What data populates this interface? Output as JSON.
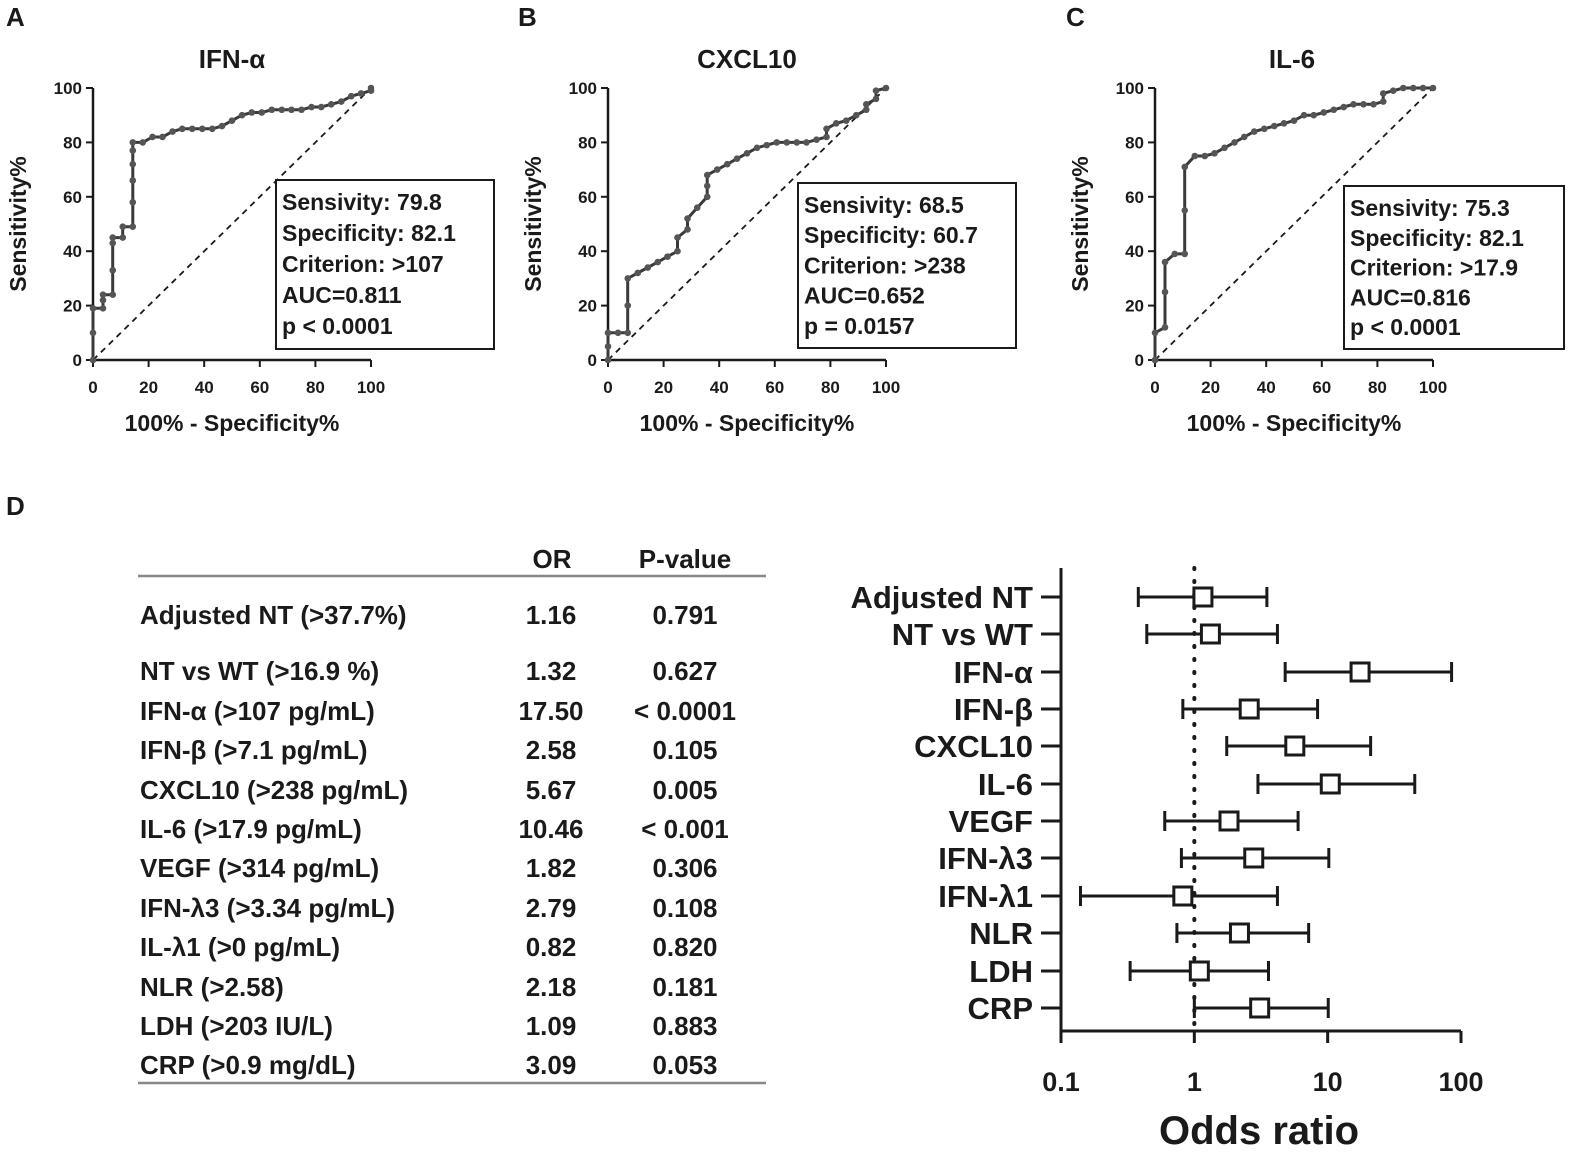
{
  "panel_labels": [
    "A",
    "B",
    "C",
    "D"
  ],
  "chart_data": [
    {
      "type": "line",
      "title": "IFN-α",
      "xlabel": "100% - Specificity%",
      "ylabel": "Sensitivity%",
      "xlim": [
        0,
        100
      ],
      "ylim": [
        0,
        100
      ],
      "x_ticks": [
        0,
        20,
        40,
        60,
        80,
        100
      ],
      "y_ticks": [
        0,
        20,
        40,
        60,
        80,
        100
      ],
      "reference_line": "diagonal",
      "stats": [
        "Sensivity: 79.8",
        "Specificity: 82.1",
        "Criterion: >107",
        "AUC=0.811",
        "p < 0.0001"
      ],
      "series": [
        {
          "name": "ROC",
          "x": [
            0,
            0,
            0,
            3.6,
            3.6,
            3.6,
            7.1,
            7.1,
            7.1,
            7.1,
            10.7,
            10.7,
            14.3,
            14.3,
            14.3,
            14.3,
            14.3,
            14.3,
            17.9,
            21.4,
            25,
            28.6,
            32.1,
            35.7,
            39.3,
            42.9,
            46.4,
            50,
            53.6,
            57.1,
            60.7,
            64.3,
            67.9,
            71.4,
            75,
            78.6,
            82.1,
            85.7,
            89.3,
            92.9,
            96.4,
            100,
            100
          ],
          "y": [
            0,
            10,
            19,
            19,
            22,
            24,
            24,
            33,
            43,
            45,
            45,
            49,
            49,
            58,
            66,
            72,
            77,
            80,
            80,
            82,
            82,
            84,
            85,
            85,
            85,
            85,
            86,
            88,
            90,
            91,
            91,
            92,
            92,
            92,
            92,
            93,
            93,
            94,
            95,
            97,
            98,
            99,
            100
          ]
        }
      ]
    },
    {
      "type": "line",
      "title": "CXCL10",
      "xlabel": "100% - Specificity%",
      "ylabel": "Sensitivity%",
      "xlim": [
        0,
        100
      ],
      "ylim": [
        0,
        100
      ],
      "x_ticks": [
        0,
        20,
        40,
        60,
        80,
        100
      ],
      "y_ticks": [
        0,
        20,
        40,
        60,
        80,
        100
      ],
      "reference_line": "diagonal",
      "stats": [
        "Sensivity: 68.5",
        "Specificity: 60.7",
        "Criterion: >238",
        "AUC=0.652",
        "p = 0.0157"
      ],
      "series": [
        {
          "name": "ROC",
          "x": [
            0,
            0,
            0,
            3.6,
            7.1,
            7.1,
            7.1,
            10.7,
            14.3,
            17.9,
            21.4,
            25,
            25,
            28.6,
            28.6,
            32.1,
            35.7,
            35.7,
            35.7,
            39.3,
            42.9,
            46.4,
            50,
            53.6,
            57.1,
            60.7,
            64.3,
            67.9,
            71.4,
            75,
            78.6,
            78.6,
            82.1,
            85.7,
            89.3,
            92.9,
            92.9,
            96.4,
            96.4,
            100
          ],
          "y": [
            0,
            5,
            10,
            10,
            10,
            20,
            30,
            32,
            34,
            36,
            38,
            40,
            45,
            48,
            52,
            56,
            60,
            64,
            68,
            70,
            72,
            74,
            76,
            78,
            79,
            80,
            80,
            80,
            80,
            81,
            82,
            85,
            87,
            88,
            90,
            92,
            94,
            96,
            99,
            100
          ]
        }
      ]
    },
    {
      "type": "line",
      "title": "IL-6",
      "xlabel": "100% - Specificity%",
      "ylabel": "Sensitivity%",
      "xlim": [
        0,
        100
      ],
      "ylim": [
        0,
        100
      ],
      "x_ticks": [
        0,
        20,
        40,
        60,
        80,
        100
      ],
      "y_ticks": [
        0,
        20,
        40,
        60,
        80,
        100
      ],
      "reference_line": "diagonal",
      "stats": [
        "Sensivity: 75.3",
        "Specificity: 82.1",
        "Criterion: >17.9",
        "AUC=0.816",
        "p < 0.0001"
      ],
      "series": [
        {
          "name": "ROC",
          "x": [
            0,
            0,
            3.6,
            3.6,
            3.6,
            7.1,
            10.7,
            10.7,
            10.7,
            14.3,
            17.9,
            21.4,
            25,
            28.6,
            32.1,
            35.7,
            39.3,
            42.9,
            46.4,
            50,
            53.6,
            57.1,
            60.7,
            64.3,
            67.9,
            71.4,
            75,
            78.6,
            82.1,
            82.1,
            85.7,
            89.3,
            92.9,
            96.4,
            100
          ],
          "y": [
            0,
            10,
            12,
            25,
            36,
            39,
            39,
            55,
            71,
            75,
            75,
            76,
            78,
            80,
            82,
            84,
            85,
            86,
            87,
            88,
            90,
            90,
            91,
            92,
            93,
            94,
            94,
            94,
            95,
            98,
            99,
            100,
            100,
            100,
            100
          ]
        }
      ]
    },
    {
      "type": "scatter",
      "subtype": "forest",
      "xscale": "log",
      "xlabel": "Odds ratio",
      "xlim": [
        0.1,
        100
      ],
      "x_ticks": [
        "0.1",
        "1",
        "10",
        "100"
      ],
      "reference_x": 1,
      "categories": [
        "Adjusted NT",
        "NT vs WT",
        "IFN-α",
        "IFN-β",
        "CXCL10",
        "IL-6",
        "VEGF",
        "IFN-λ3",
        "IFN-λ1",
        "NLR",
        "LDH",
        "CRP"
      ],
      "or": [
        1.16,
        1.32,
        17.5,
        2.58,
        5.67,
        10.46,
        1.82,
        2.79,
        0.82,
        2.18,
        1.09,
        3.09
      ],
      "ci_low": [
        0.38,
        0.44,
        4.8,
        0.82,
        1.75,
        3.0,
        0.6,
        0.8,
        0.14,
        0.74,
        0.33,
        1.0
      ],
      "ci_high": [
        3.5,
        4.2,
        85,
        8.4,
        21,
        45,
        6.0,
        10.2,
        4.2,
        7.2,
        3.6,
        10.1
      ]
    }
  ],
  "table": {
    "headers": [
      "OR",
      "P-value"
    ],
    "rows": [
      {
        "label": "Adjusted NT (>37.7%)",
        "or": "1.16",
        "p": "0.791"
      },
      {
        "label": "NT vs WT (>16.9 %)",
        "or": "1.32",
        "p": "0.627"
      },
      {
        "label": "IFN-α (>107 pg/mL)",
        "or": "17.50",
        "p": "< 0.0001"
      },
      {
        "label": "IFN-β (>7.1 pg/mL)",
        "or": "2.58",
        "p": "0.105"
      },
      {
        "label": "CXCL10 (>238 pg/mL)",
        "or": "5.67",
        "p": "0.005"
      },
      {
        "label": "IL-6 (>17.9 pg/mL)",
        "or": "10.46",
        "p": "< 0.001"
      },
      {
        "label": "VEGF (>314 pg/mL)",
        "or": "1.82",
        "p": "0.306"
      },
      {
        "label": "IFN-λ3 (>3.34 pg/mL)",
        "or": "2.79",
        "p": "0.108"
      },
      {
        "label": "IL-λ1 (>0 pg/mL)",
        "or": "0.82",
        "p": "0.820"
      },
      {
        "label": "NLR (>2.58)",
        "or": "2.18",
        "p": "0.181"
      },
      {
        "label": "LDH (>203 IU/L)",
        "or": "1.09",
        "p": "0.883"
      },
      {
        "label": "CRP (>0.9 mg/dL)",
        "or": "3.09",
        "p": "0.053"
      }
    ]
  },
  "colors": {
    "ink": "#1a1a1a",
    "line": "#3a3a3a",
    "marker": "#555555",
    "rule": "#888888"
  }
}
